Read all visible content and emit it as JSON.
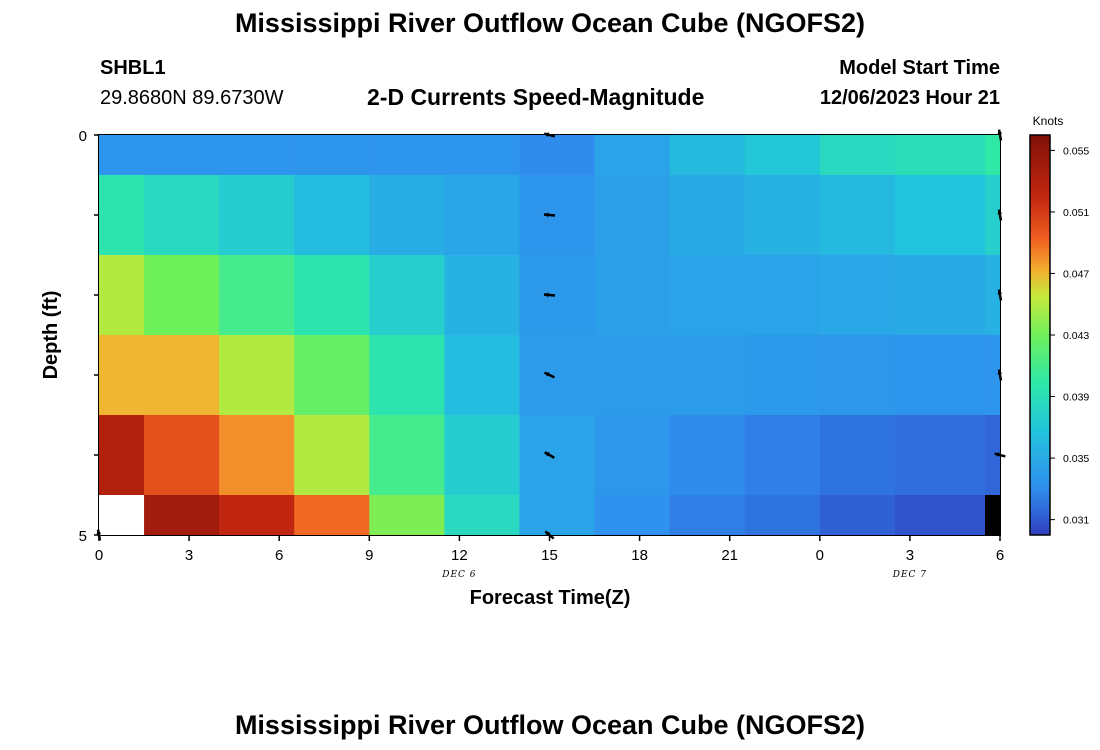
{
  "page": {
    "title": "Mississippi River Outflow Ocean Cube (NGOFS2)",
    "title_repeat": "Mississippi River Outflow Ocean Cube (NGOFS2)",
    "station_name": "SHBL1",
    "station_coords": "29.8680N  89.6730W",
    "plot_label": "2-D Currents Speed-Magnitude",
    "model_start_label": "Model Start Time",
    "model_start_value": "12/06/2023 Hour 21"
  },
  "chart_data": {
    "type": "heatmap",
    "title": "2-D Currents Speed-Magnitude",
    "xlabel": "Forecast Time(Z)",
    "ylabel": "Depth (ft)",
    "x_ticks": [
      "0",
      "3",
      "6",
      "9",
      "12",
      "15",
      "18",
      "21",
      "0",
      "3",
      "6"
    ],
    "x_range_hours": [
      0,
      30
    ],
    "date_labels": [
      {
        "text": "DEC 6",
        "hour": 12
      },
      {
        "text": "DEC 7",
        "hour": 27
      }
    ],
    "y_ticks": [
      "0",
      "5"
    ],
    "y_range": [
      0,
      5
    ],
    "colorbar": {
      "label": "Knots",
      "range": [
        0.03,
        0.056
      ],
      "ticks": [
        "0.055",
        "0.051",
        "0.047",
        "0.043",
        "0.039",
        "0.035",
        "0.031"
      ],
      "tick_values": [
        0.055,
        0.051,
        0.047,
        0.043,
        0.039,
        0.035,
        0.031
      ]
    },
    "x_cells": [
      0,
      1.5,
      4,
      6.5,
      9,
      11.5,
      14,
      16.5,
      19,
      21.5,
      24,
      26.5,
      29.5,
      30
    ],
    "y_cells": [
      0,
      0.5,
      1.5,
      2.5,
      3.5,
      4.5,
      5
    ],
    "values": [
      [
        0.0335,
        0.0335,
        0.0335,
        0.0335,
        0.0335,
        0.0335,
        0.033,
        0.0345,
        0.036,
        0.037,
        0.0385,
        0.039,
        0.04
      ],
      [
        0.0395,
        0.0385,
        0.0375,
        0.0362,
        0.0352,
        0.0347,
        0.0335,
        0.0343,
        0.035,
        0.0355,
        0.036,
        0.0367,
        0.0377
      ],
      [
        0.045,
        0.043,
        0.041,
        0.0395,
        0.0377,
        0.0355,
        0.0338,
        0.0343,
        0.0345,
        0.0345,
        0.0348,
        0.035,
        0.0355
      ],
      [
        0.047,
        0.047,
        0.045,
        0.0425,
        0.0395,
        0.0362,
        0.034,
        0.034,
        0.034,
        0.0338,
        0.0337,
        0.0335,
        0.0335
      ],
      [
        0.053,
        0.05,
        0.048,
        0.045,
        0.041,
        0.0375,
        0.0345,
        0.0337,
        0.033,
        0.0325,
        0.032,
        0.0318,
        0.0315
      ],
      [
        null,
        0.054,
        0.052,
        0.049,
        0.0435,
        0.0385,
        0.0345,
        0.0333,
        0.0325,
        0.032,
        0.0313,
        0.0308,
        0.028
      ]
    ],
    "arrows": [
      {
        "hour": 15,
        "depth": 0.0,
        "dir_deg": 165
      },
      {
        "hour": 15,
        "depth": 1.0,
        "dir_deg": 175
      },
      {
        "hour": 15,
        "depth": 2.0,
        "dir_deg": 175
      },
      {
        "hour": 15,
        "depth": 3.0,
        "dir_deg": 155
      },
      {
        "hour": 15,
        "depth": 4.0,
        "dir_deg": 150
      },
      {
        "hour": 15,
        "depth": 5.0,
        "dir_deg": 140
      },
      {
        "hour": 30,
        "depth": 0.0,
        "dir_deg": 100
      },
      {
        "hour": 30,
        "depth": 1.0,
        "dir_deg": 100
      },
      {
        "hour": 30,
        "depth": 2.0,
        "dir_deg": 100
      },
      {
        "hour": 30,
        "depth": 3.0,
        "dir_deg": 100
      },
      {
        "hour": 30,
        "depth": 4.0,
        "dir_deg": 165
      },
      {
        "hour": 0,
        "depth": 5.0,
        "dir_deg": 100
      }
    ]
  }
}
